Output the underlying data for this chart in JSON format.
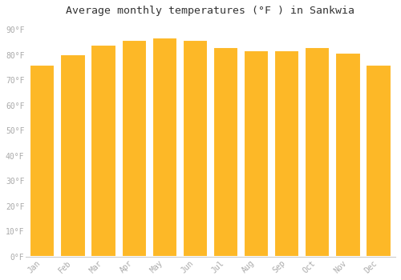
{
  "months": [
    "Jan",
    "Feb",
    "Mar",
    "Apr",
    "May",
    "Jun",
    "Jul",
    "Aug",
    "Sep",
    "Oct",
    "Nov",
    "Dec"
  ],
  "values": [
    76.3,
    80.2,
    84.0,
    86.0,
    87.1,
    86.0,
    83.1,
    81.9,
    81.9,
    83.3,
    81.0,
    76.1
  ],
  "bar_color": "#FDB827",
  "bar_edge_color": "#F5A800",
  "title": "Average monthly temperatures (°F ) in Sankwia",
  "title_fontsize": 9.5,
  "ylabel_ticks": [
    "0°F",
    "10°F",
    "20°F",
    "30°F",
    "40°F",
    "50°F",
    "60°F",
    "70°F",
    "80°F",
    "90°F"
  ],
  "ytick_values": [
    0,
    10,
    20,
    30,
    40,
    50,
    60,
    70,
    80,
    90
  ],
  "ylim": [
    0,
    93
  ],
  "background_color": "#ffffff",
  "grid_color": "#ffffff",
  "tick_label_color": "#aaaaaa",
  "bar_width": 0.82
}
